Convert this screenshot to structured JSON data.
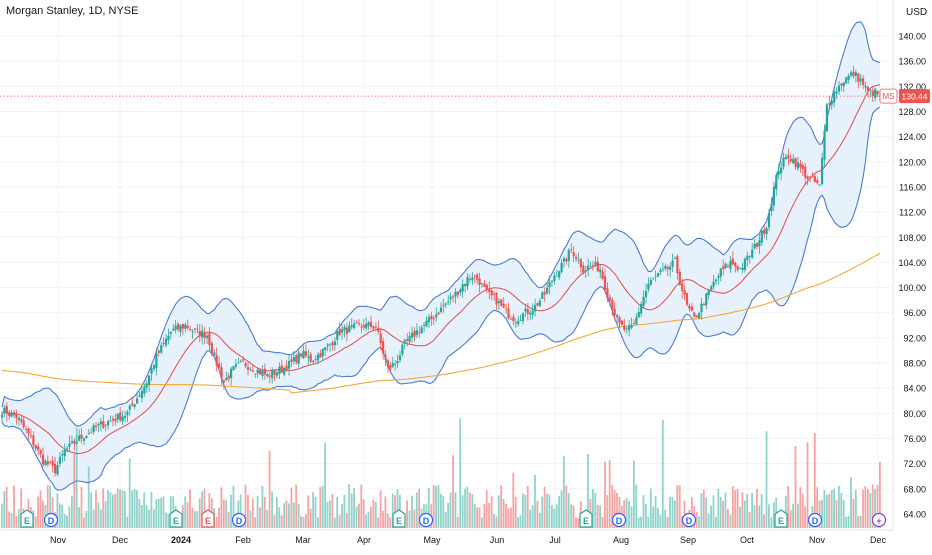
{
  "header": {
    "title": "Morgan Stanley, 1D, NYSE",
    "currency": "USD"
  },
  "price_tag": {
    "symbol": "MS",
    "value": "130.44"
  },
  "colors": {
    "up": "#26a69a",
    "down": "#ef5350",
    "volume_up": "#8fd3cb",
    "volume_down": "#f5a3a3",
    "bb_band": "#4a7bd4",
    "bb_fill": "#e7f1fb",
    "ma_red": "#e5484d",
    "ma_orange": "#f2a93b",
    "grid": "#f0f3fa",
    "axis_text": "#131722"
  },
  "chart_data": {
    "type": "candlestick",
    "title": "Morgan Stanley, 1D, NYSE",
    "y_ticks": [
      "140.00",
      "136.00",
      "132.00",
      "128.00",
      "124.00",
      "120.00",
      "116.00",
      "112.00",
      "108.00",
      "104.00",
      "100.00",
      "96.00",
      "92.00",
      "88.00",
      "84.00",
      "80.00",
      "76.00",
      "72.00",
      "68.00",
      "64.00"
    ],
    "x_ticks": [
      "Nov",
      "Dec",
      "2024",
      "Feb",
      "Mar",
      "Apr",
      "May",
      "Jun",
      "Jul",
      "Aug",
      "Sep",
      "Oct",
      "Nov",
      "Dec"
    ],
    "ylim": [
      62,
      143
    ],
    "last_price": 130.44,
    "price_keypoints": [
      [
        0,
        80.5
      ],
      [
        6,
        79.5
      ],
      [
        12,
        76
      ],
      [
        17,
        72.5
      ],
      [
        22,
        71
      ],
      [
        26,
        74
      ],
      [
        32,
        76
      ],
      [
        40,
        78
      ],
      [
        46,
        79
      ],
      [
        52,
        80
      ],
      [
        56,
        82.5
      ],
      [
        60,
        85
      ],
      [
        64,
        89
      ],
      [
        70,
        93
      ],
      [
        76,
        94
      ],
      [
        80,
        93
      ],
      [
        85,
        92.5
      ],
      [
        88,
        89
      ],
      [
        92,
        85
      ],
      [
        96,
        87
      ],
      [
        100,
        88
      ],
      [
        105,
        87
      ],
      [
        110,
        86
      ],
      [
        116,
        87
      ],
      [
        120,
        88
      ],
      [
        124,
        89.5
      ],
      [
        128,
        88.5
      ],
      [
        132,
        89.5
      ],
      [
        136,
        91
      ],
      [
        140,
        93
      ],
      [
        145,
        93.5
      ],
      [
        150,
        94
      ],
      [
        155,
        93.8
      ],
      [
        160,
        87
      ],
      [
        163,
        88
      ],
      [
        167,
        91
      ],
      [
        172,
        93
      ],
      [
        178,
        95
      ],
      [
        183,
        97
      ],
      [
        188,
        99
      ],
      [
        192,
        101
      ],
      [
        195,
        102
      ],
      [
        198,
        101
      ],
      [
        201,
        99
      ],
      [
        205,
        98
      ],
      [
        209,
        96
      ],
      [
        213,
        95
      ],
      [
        217,
        96
      ],
      [
        221,
        97
      ],
      [
        225,
        99
      ],
      [
        229,
        102
      ],
      [
        233,
        104
      ],
      [
        236,
        106
      ],
      [
        238,
        105
      ],
      [
        241,
        103
      ],
      [
        245,
        103.5
      ],
      [
        248,
        103
      ],
      [
        251,
        99
      ],
      [
        254,
        96
      ],
      [
        256,
        94
      ],
      [
        259,
        93
      ],
      [
        262,
        94
      ],
      [
        265,
        97.5
      ],
      [
        268,
        100.5
      ],
      [
        272,
        102
      ],
      [
        276,
        103
      ],
      [
        279,
        104
      ],
      [
        281,
        101
      ],
      [
        284,
        97
      ],
      [
        287,
        95
      ],
      [
        290,
        97
      ],
      [
        294,
        100
      ],
      [
        298,
        102.5
      ],
      [
        302,
        104
      ],
      [
        306,
        103
      ],
      [
        308,
        104
      ],
      [
        313,
        107
      ],
      [
        317,
        110
      ],
      [
        319,
        114
      ],
      [
        322,
        119
      ],
      [
        326,
        121
      ],
      [
        330,
        119.5
      ],
      [
        334,
        117.5
      ],
      [
        338,
        116.5
      ],
      [
        339,
        116
      ],
      [
        342,
        129
      ],
      [
        345,
        131
      ],
      [
        349,
        133
      ],
      [
        353,
        134
      ],
      [
        356,
        133
      ],
      [
        359,
        131
      ],
      [
        362,
        131
      ],
      [
        364,
        130.44
      ]
    ],
    "first_date_index_note": "Daily bars; index 0 at left edge (Oct 2023), last bar early Dec 2024"
  }
}
